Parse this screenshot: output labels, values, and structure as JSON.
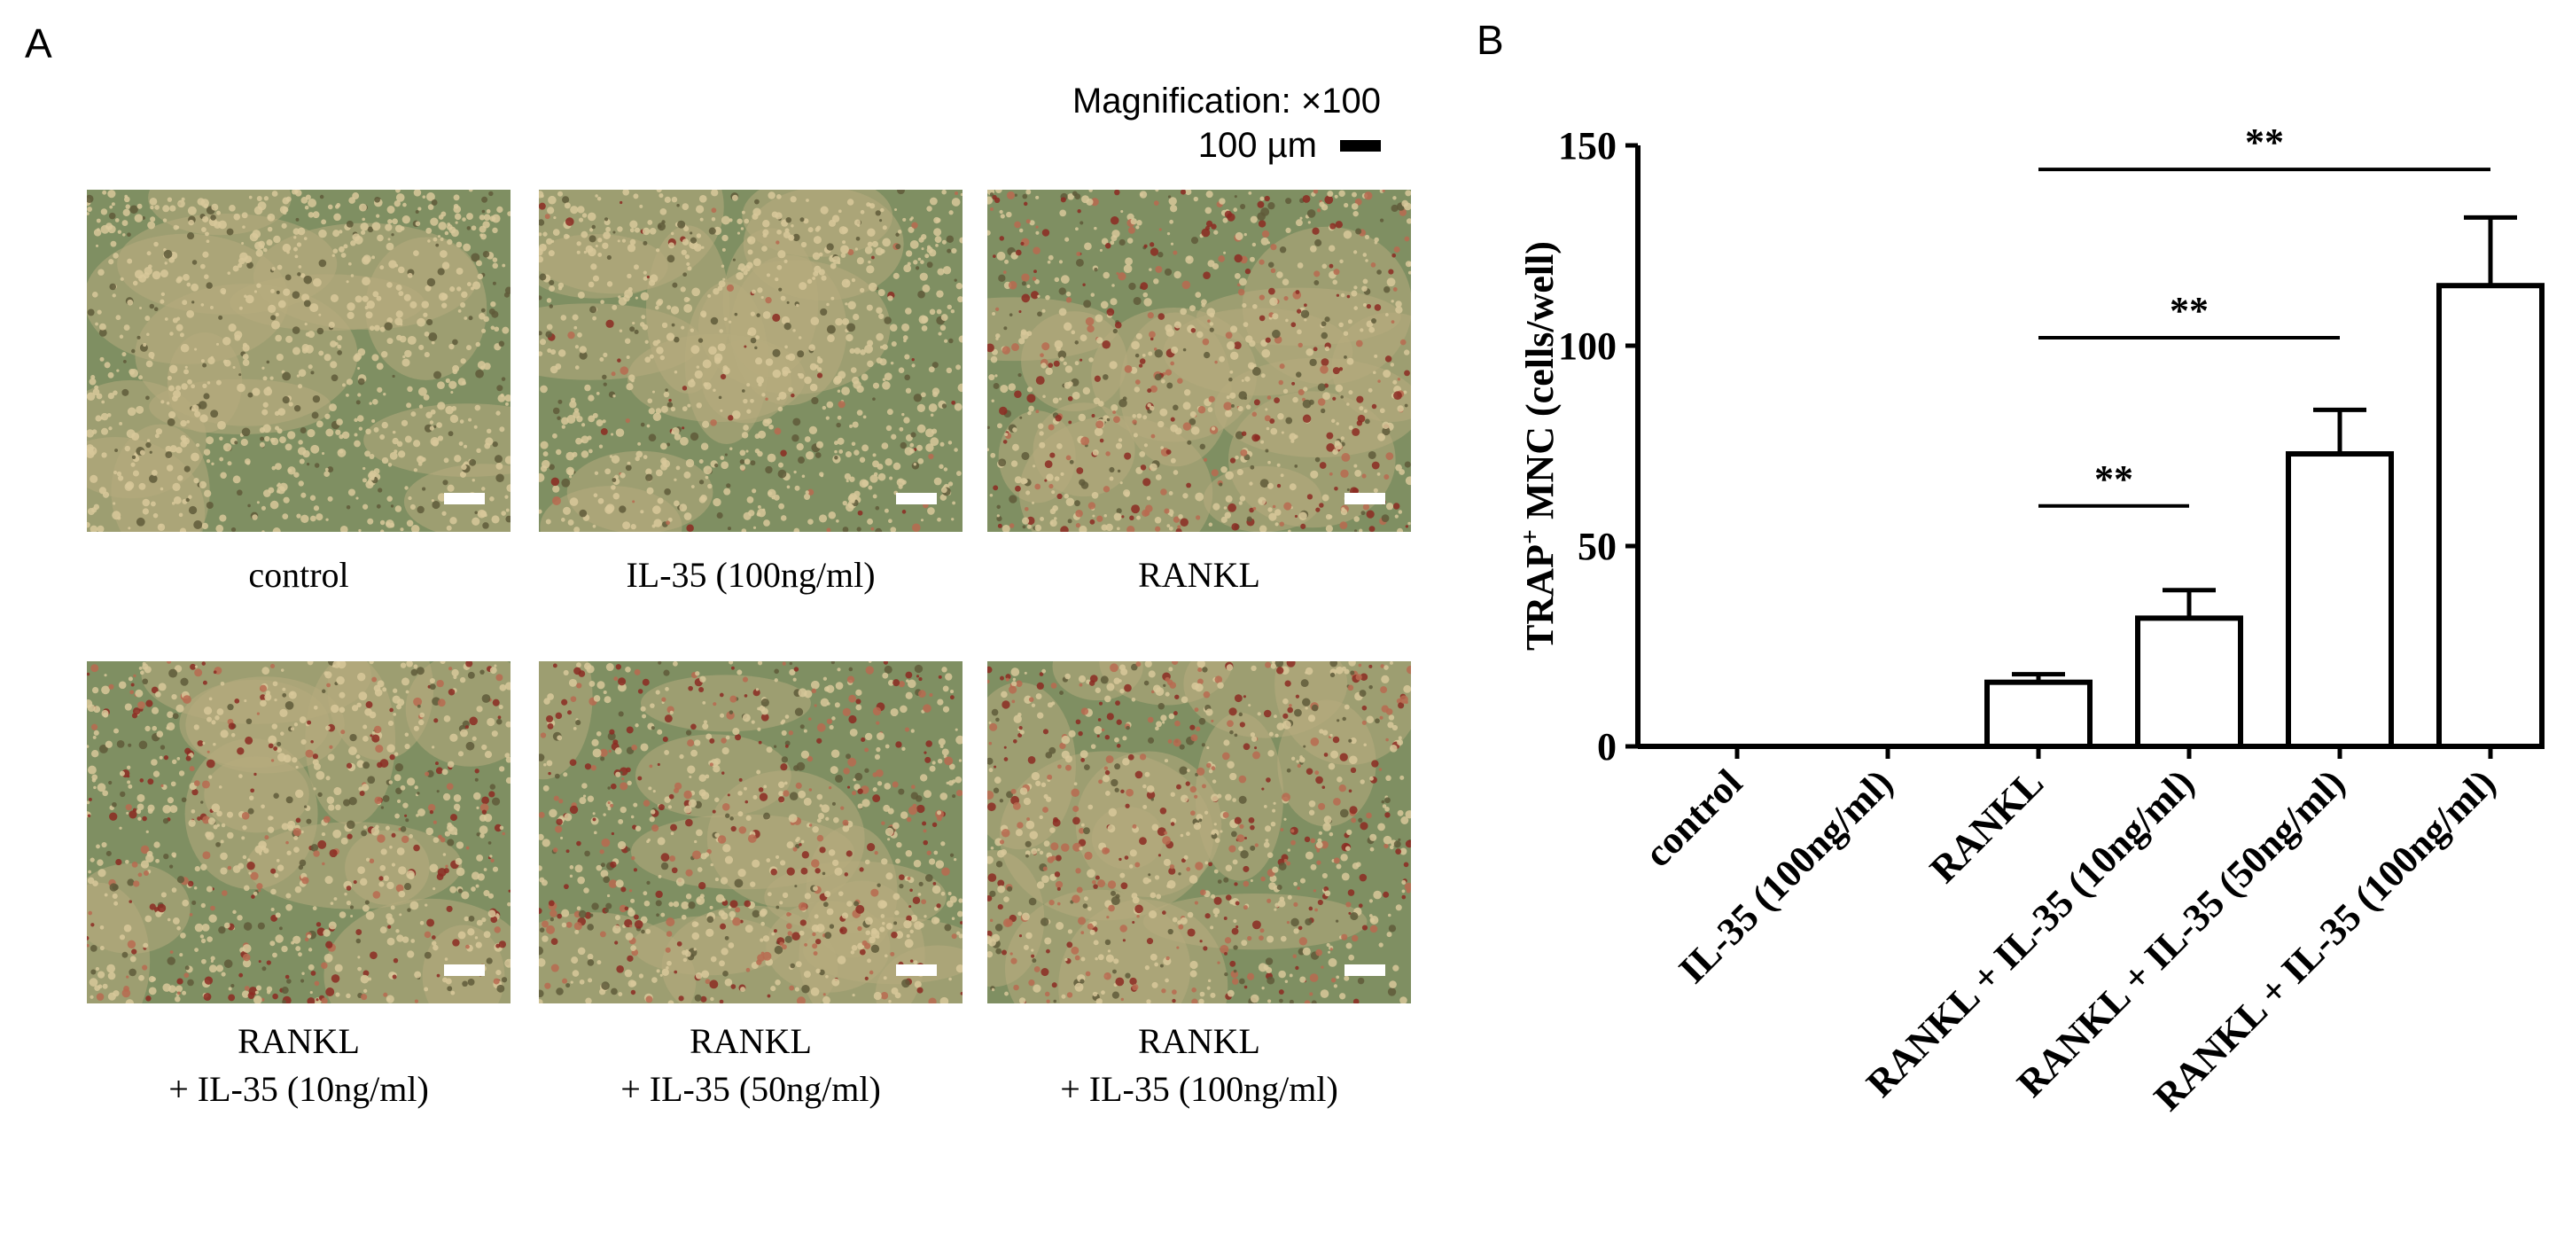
{
  "panel_a": {
    "label": "A",
    "magnification": "Magnification: ×100",
    "scale_bar_label": "100 µm",
    "photos": [
      {
        "caption_line1": "control",
        "caption_line2": ""
      },
      {
        "caption_line1": "IL-35 (100ng/ml)",
        "caption_line2": ""
      },
      {
        "caption_line1": "RANKL",
        "caption_line2": ""
      },
      {
        "caption_line1": "RANKL",
        "caption_line2": "+ IL-35 (10ng/ml)"
      },
      {
        "caption_line1": "RANKL",
        "caption_line2": "+ IL-35 (50ng/ml)"
      },
      {
        "caption_line1": "RANKL",
        "caption_line2": "+ IL-35 (100ng/ml)"
      }
    ]
  },
  "panel_b": {
    "label": "B"
  },
  "chart_data": {
    "type": "bar",
    "title": "",
    "ylabel_prefix": "TRAP",
    "ylabel_sup": "+",
    "ylabel_suffix": " MNC (cells/well)",
    "categories": [
      "control",
      "IL-35 (100ng/ml)",
      "RANKL",
      "RANKL + IL-35 (10ng/ml)",
      "RANKL + IL-35 (50ng/ml)",
      "RANKL + IL-35 (100ng/ml)"
    ],
    "values": [
      0,
      0,
      16,
      32,
      73,
      115
    ],
    "errors": [
      0,
      0,
      2,
      7,
      11,
      17
    ],
    "ylim": [
      0,
      150
    ],
    "yticks": [
      0,
      50,
      100,
      150
    ],
    "significance": [
      {
        "from": 2,
        "to": 3,
        "label": "**"
      },
      {
        "from": 2,
        "to": 4,
        "label": "**"
      },
      {
        "from": 2,
        "to": 5,
        "label": "**"
      }
    ]
  }
}
